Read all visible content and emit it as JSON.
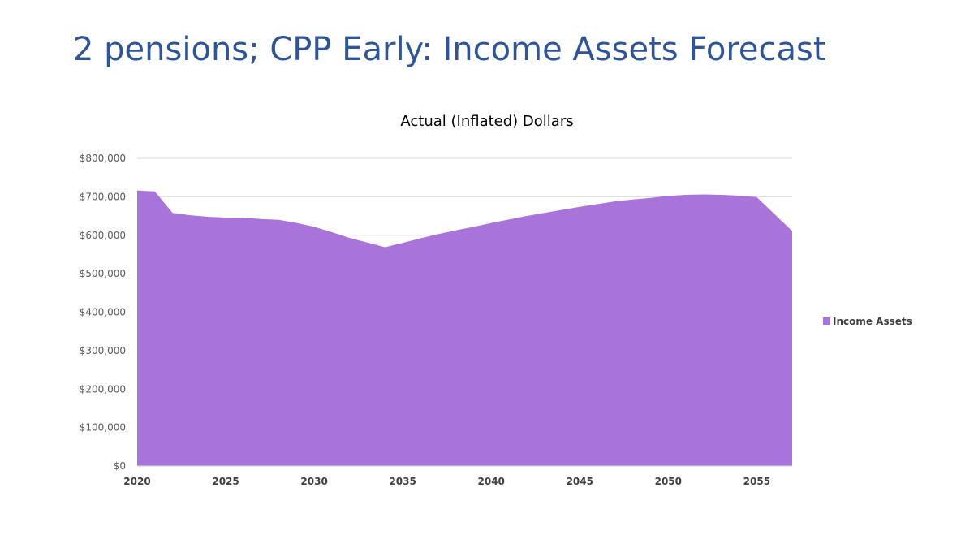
{
  "slide": {
    "title": "2 pensions; CPP Early:  Income Assets Forecast"
  },
  "chart_data": {
    "type": "area",
    "title": "Actual (Inflated) Dollars",
    "xlabel": "",
    "ylabel": "",
    "xlim": [
      2020,
      2057
    ],
    "ylim": [
      0,
      800000
    ],
    "x_ticks": [
      2020,
      2025,
      2030,
      2035,
      2040,
      2045,
      2050,
      2055
    ],
    "x_tick_labels": [
      "2020",
      "2025",
      "2030",
      "2035",
      "2040",
      "2045",
      "2050",
      "2055"
    ],
    "y_ticks": [
      0,
      100000,
      200000,
      300000,
      400000,
      500000,
      600000,
      700000,
      800000
    ],
    "y_tick_labels": [
      "$0",
      "$100,000",
      "$200,000",
      "$300,000",
      "$400,000",
      "$500,000",
      "$600,000",
      "$700,000",
      "$800,000"
    ],
    "grid": true,
    "legend_position": "right",
    "series": [
      {
        "name": "Income Assets",
        "color": "#a974d9",
        "x": [
          2020,
          2021,
          2022,
          2023,
          2024,
          2025,
          2026,
          2027,
          2028,
          2029,
          2030,
          2031,
          2032,
          2033,
          2034,
          2035,
          2036,
          2037,
          2038,
          2039,
          2040,
          2041,
          2042,
          2043,
          2044,
          2045,
          2046,
          2047,
          2048,
          2049,
          2050,
          2051,
          2052,
          2053,
          2054,
          2055,
          2056,
          2057
        ],
        "values": [
          716000,
          714000,
          658000,
          652000,
          648000,
          646000,
          646000,
          642000,
          640000,
          632000,
          622000,
          608000,
          593000,
          581000,
          569000,
          580000,
          592000,
          603000,
          613000,
          622000,
          632000,
          641000,
          650000,
          658000,
          666000,
          674000,
          681000,
          688000,
          693000,
          697000,
          702000,
          705000,
          706000,
          705000,
          703000,
          699000,
          655000,
          611000
        ]
      }
    ]
  }
}
